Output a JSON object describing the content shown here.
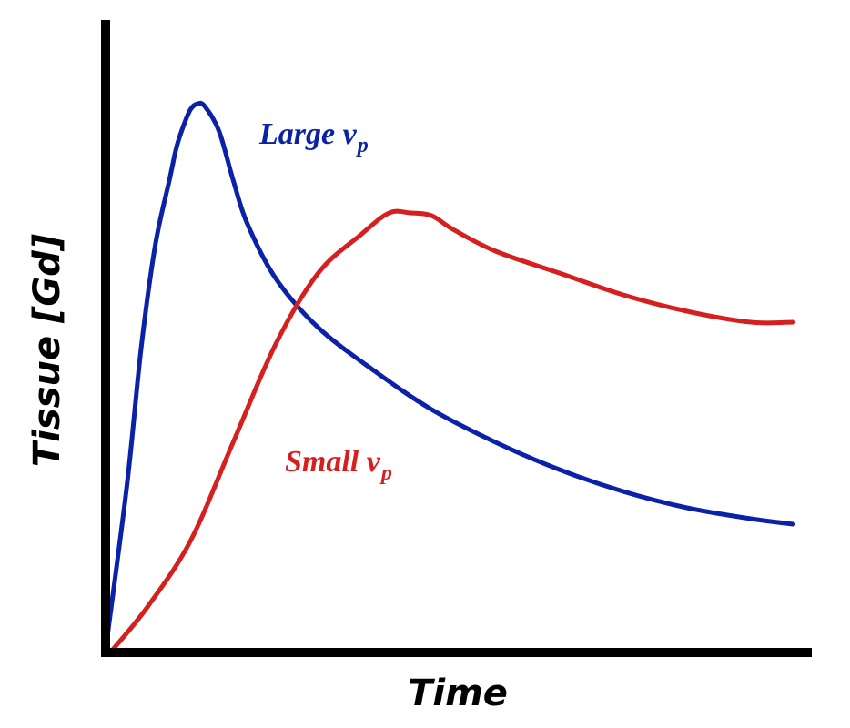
{
  "chart_data": {
    "type": "line",
    "xlabel": "Time",
    "ylabel": "Tissue [Gd]",
    "xlim": [
      0,
      100
    ],
    "ylim": [
      0,
      100
    ],
    "ticks": false,
    "grid": false,
    "series": [
      {
        "name": "Large v",
        "subscript": "p",
        "color": "#0a21a8",
        "x": [
          0,
          3,
          5,
          7,
          9,
          10,
          11,
          12,
          13,
          14,
          16,
          18,
          20,
          24,
          30,
          38,
          46,
          55,
          64,
          73,
          82,
          91,
          97
        ],
        "y": [
          0,
          30,
          55,
          74,
          86,
          92,
          96,
          99,
          100,
          99.5,
          95,
          86,
          78,
          68,
          59,
          51,
          44,
          38,
          33,
          29,
          26,
          24,
          23
        ]
      },
      {
        "name": "Small v",
        "subscript": "p",
        "color": "#d62020",
        "x": [
          1,
          6,
          12,
          18,
          24,
          30,
          36,
          40,
          43,
          46,
          49,
          55,
          64,
          73,
          82,
          91,
          97
        ],
        "y": [
          0,
          8,
          20,
          38,
          56,
          69,
          76,
          80,
          80,
          79.5,
          77,
          73,
          69,
          65,
          62,
          60,
          60
        ]
      }
    ]
  }
}
